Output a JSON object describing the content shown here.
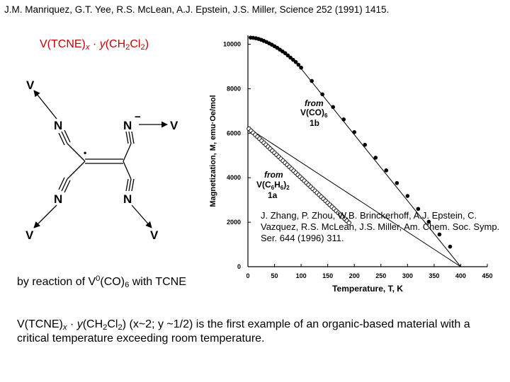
{
  "citation": "J.M. Manriquez, G.T. Yee, R.S. McLean, A.J. Epstein, J.S. Miller, Science 252 (1991) 1415.",
  "formula_title": {
    "prefix": "V(TCNE)",
    "x": "x",
    "dot": " · ",
    "y": "y",
    "open": "(CH",
    "two": "2",
    "cl": "Cl",
    "two_b": "2",
    "close": ")"
  },
  "structure": {
    "v_top_left": "V",
    "v_right": "V",
    "v_bottom_left": "V",
    "v_bottom_right": "V",
    "n_top_left": "N",
    "n_top_right": "N",
    "n_bottom_left": "N",
    "n_bottom_right": "N",
    "minus": "−",
    "radical": "•"
  },
  "reference2": "J. Zhang, P. Zhou, W.B. Brinckerhoff, A.J. Epstein, C. Vazquez, R.S. McLean, J.S. Miller, Am. Chem. Soc. Symp. Ser. 644 (1996) 311.",
  "reaction": {
    "text": "by reaction of V",
    "sup": "0",
    "mid": "(CO)",
    "sub": "6",
    "end": " with TCNE"
  },
  "summary": {
    "prefix": "V(TCNE)",
    "x": "x",
    "dot": " · ",
    "y": "y",
    "open": "(CH",
    "two": "2",
    "cl": "Cl",
    "two_b": "2",
    "rest": ") (x~2; y ~1/2)  is the first example of an organic-based material with a critical temperature exceeding room temperature."
  },
  "chart_data": {
    "type": "scatter",
    "title": "",
    "xlabel": "Temperature, T, K",
    "ylabel": "Magnetization, M, emu·Oe/mol",
    "xlim": [
      0,
      450
    ],
    "ylim": [
      0,
      10400
    ],
    "xticks": [
      0,
      50,
      100,
      150,
      200,
      250,
      300,
      350,
      400,
      450
    ],
    "yticks": [
      0,
      2000,
      4000,
      6000,
      8000,
      10000
    ],
    "series": [
      {
        "name": "from V(CO)6 1b",
        "label_lines": [
          "from",
          "V(CO)",
          "6",
          "1b"
        ],
        "marker": "filled",
        "points": [
          [
            5,
            10300
          ],
          [
            10,
            10290
          ],
          [
            15,
            10270
          ],
          [
            20,
            10240
          ],
          [
            25,
            10200
          ],
          [
            30,
            10150
          ],
          [
            35,
            10100
          ],
          [
            40,
            10040
          ],
          [
            45,
            9980
          ],
          [
            50,
            9910
          ],
          [
            55,
            9840
          ],
          [
            60,
            9760
          ],
          [
            65,
            9680
          ],
          [
            70,
            9600
          ],
          [
            75,
            9500
          ],
          [
            80,
            9400
          ],
          [
            85,
            9300
          ],
          [
            90,
            9200
          ],
          [
            95,
            9080
          ],
          [
            100,
            8950
          ],
          [
            120,
            8350
          ],
          [
            140,
            7750
          ],
          [
            160,
            7180
          ],
          [
            180,
            6620
          ],
          [
            200,
            6050
          ],
          [
            220,
            5480
          ],
          [
            240,
            4900
          ],
          [
            260,
            4330
          ],
          [
            280,
            3760
          ],
          [
            300,
            3180
          ],
          [
            320,
            2600
          ],
          [
            340,
            2020
          ],
          [
            360,
            1450
          ],
          [
            380,
            900
          ]
        ],
        "fit": [
          [
            90,
            9200
          ],
          [
            400,
            0
          ]
        ]
      },
      {
        "name": "from V(C6H6)2 1a",
        "label_lines": [
          "from",
          "V(C",
          "6",
          "H",
          "6",
          ")",
          "2",
          "1a"
        ],
        "marker": "open",
        "points": [
          [
            2,
            6200
          ],
          [
            6,
            6110
          ],
          [
            10,
            6020
          ],
          [
            14,
            5930
          ],
          [
            18,
            5840
          ],
          [
            22,
            5750
          ],
          [
            26,
            5660
          ],
          [
            30,
            5570
          ],
          [
            34,
            5480
          ],
          [
            38,
            5390
          ],
          [
            42,
            5300
          ],
          [
            46,
            5210
          ],
          [
            50,
            5120
          ],
          [
            54,
            5030
          ],
          [
            58,
            4940
          ],
          [
            62,
            4850
          ],
          [
            66,
            4760
          ],
          [
            70,
            4670
          ],
          [
            74,
            4580
          ],
          [
            78,
            4490
          ],
          [
            82,
            4400
          ],
          [
            86,
            4310
          ],
          [
            90,
            4220
          ],
          [
            94,
            4130
          ],
          [
            98,
            4040
          ],
          [
            102,
            3950
          ],
          [
            106,
            3860
          ],
          [
            110,
            3770
          ],
          [
            114,
            3680
          ],
          [
            118,
            3590
          ],
          [
            122,
            3500
          ],
          [
            126,
            3410
          ],
          [
            130,
            3320
          ],
          [
            134,
            3230
          ],
          [
            138,
            3140
          ],
          [
            142,
            3050
          ],
          [
            146,
            2960
          ],
          [
            150,
            2870
          ],
          [
            154,
            2780
          ],
          [
            158,
            2690
          ],
          [
            162,
            2600
          ],
          [
            166,
            2510
          ],
          [
            170,
            2420
          ],
          [
            174,
            2330
          ],
          [
            178,
            2240
          ],
          [
            182,
            2150
          ],
          [
            186,
            2060
          ],
          [
            190,
            1970
          ]
        ],
        "fit": [
          [
            0,
            6250
          ],
          [
            400,
            0
          ]
        ]
      }
    ]
  }
}
